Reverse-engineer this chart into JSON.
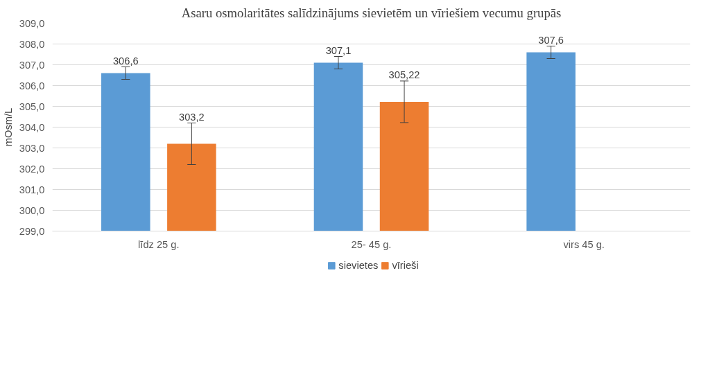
{
  "chart_data": {
    "type": "bar",
    "title": "Asaru osmolaritātes salīdzinājums sievietēm un vīriešiem vecumu grupās",
    "ylabel": "mOsm/L",
    "categories": [
      "līdz 25 g.",
      "25- 45 g.",
      "virs 45 g."
    ],
    "series": [
      {
        "name": "sievietes",
        "color": "#5b9bd5",
        "values": [
          306.6,
          307.1,
          307.6
        ],
        "errors": [
          0.3,
          0.3,
          0.3
        ],
        "value_labels": [
          "306,6",
          "307,1",
          "307,6"
        ]
      },
      {
        "name": "vīrieši",
        "color": "#ed7d31",
        "values": [
          303.2,
          305.22,
          null
        ],
        "errors": [
          1.0,
          1.0,
          null
        ],
        "value_labels": [
          "303,2",
          "305,22",
          null
        ]
      }
    ],
    "ylim": [
      299,
      309
    ],
    "yticks": [
      {
        "value": 299,
        "label": "299,0"
      },
      {
        "value": 300,
        "label": "300,0"
      },
      {
        "value": 301,
        "label": "301,0"
      },
      {
        "value": 302,
        "label": "302,0"
      },
      {
        "value": 303,
        "label": "303,0"
      },
      {
        "value": 304,
        "label": "304,0"
      },
      {
        "value": 305,
        "label": "305,0"
      },
      {
        "value": 306,
        "label": "306,0"
      },
      {
        "value": 307,
        "label": "307,0"
      },
      {
        "value": 308,
        "label": "308,0"
      },
      {
        "value": 309,
        "label": "309,0"
      }
    ],
    "grid": "y",
    "legend": "bottom"
  }
}
